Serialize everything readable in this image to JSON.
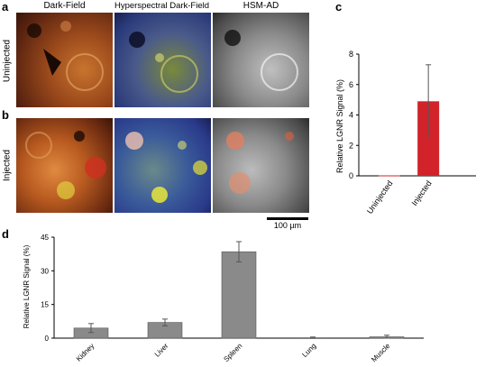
{
  "figure": {
    "panel_a_letter": "a",
    "panel_b_letter": "b",
    "panel_c_letter": "c",
    "panel_d_letter": "d",
    "columns": [
      "Dark-Field",
      "Hyperspectral Dark-Field",
      "HSM-AD"
    ],
    "rows": [
      "Uninjected",
      "Injected"
    ],
    "scale_bar_label": "100 µm",
    "colors": {
      "bar_red": "#d2232a",
      "bar_gray": "#8a8a8a",
      "error": "#555555"
    }
  },
  "chart_data": [
    {
      "type": "bar",
      "panel": "c",
      "categories": [
        "Uninjected",
        "Injected"
      ],
      "values": [
        0.03,
        4.9
      ],
      "error": [
        0.03,
        2.4
      ],
      "ylabel": "Relative LGNR Signal (%)",
      "ylim": [
        0,
        8
      ],
      "yticks": [
        "0",
        "2",
        "4",
        "6",
        "8"
      ],
      "grid": false
    },
    {
      "type": "bar",
      "panel": "d",
      "categories": [
        "Kidney",
        "Liver",
        "Spleen",
        "Lung",
        "Muscle"
      ],
      "values": [
        4.5,
        7.0,
        38.5,
        0.2,
        0.6
      ],
      "error": [
        2.0,
        1.5,
        4.5,
        0.3,
        0.7
      ],
      "ylabel": "Relative LGNR Signal (%)",
      "ylim": [
        0,
        45
      ],
      "yticks": [
        "0",
        "15",
        "30",
        "45"
      ],
      "grid": false
    }
  ]
}
